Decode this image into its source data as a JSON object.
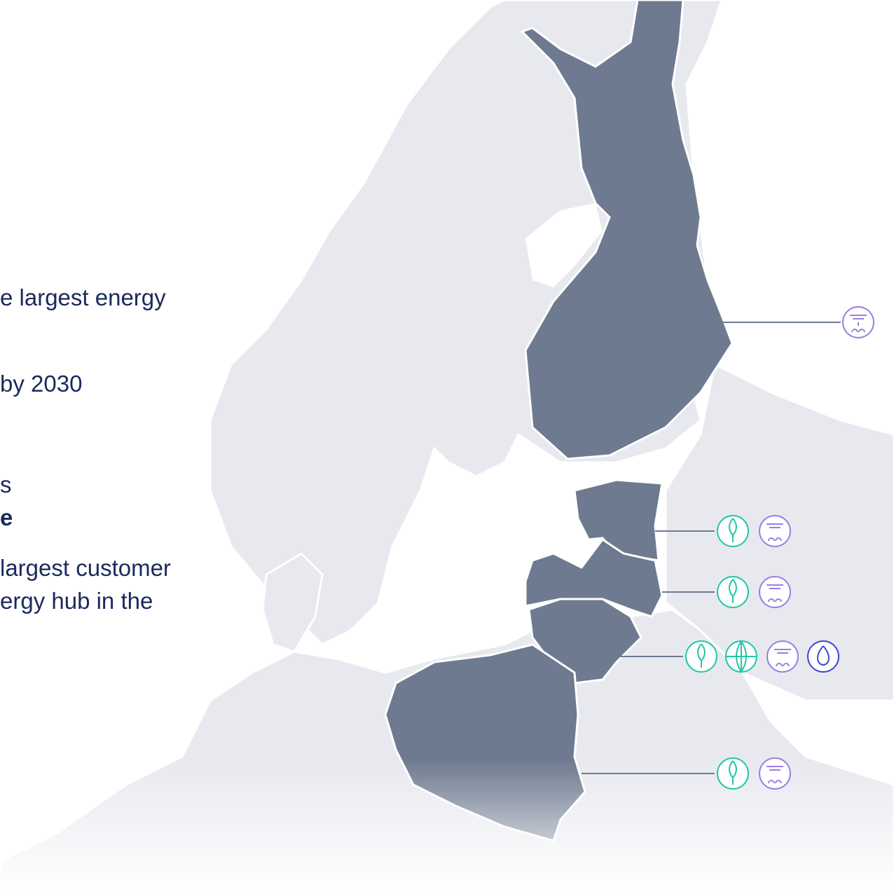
{
  "text": {
    "lines": [
      "e largest energy",
      "by 2030",
      "s",
      "e",
      "largest customer",
      "ergy hub in the"
    ]
  }
}
